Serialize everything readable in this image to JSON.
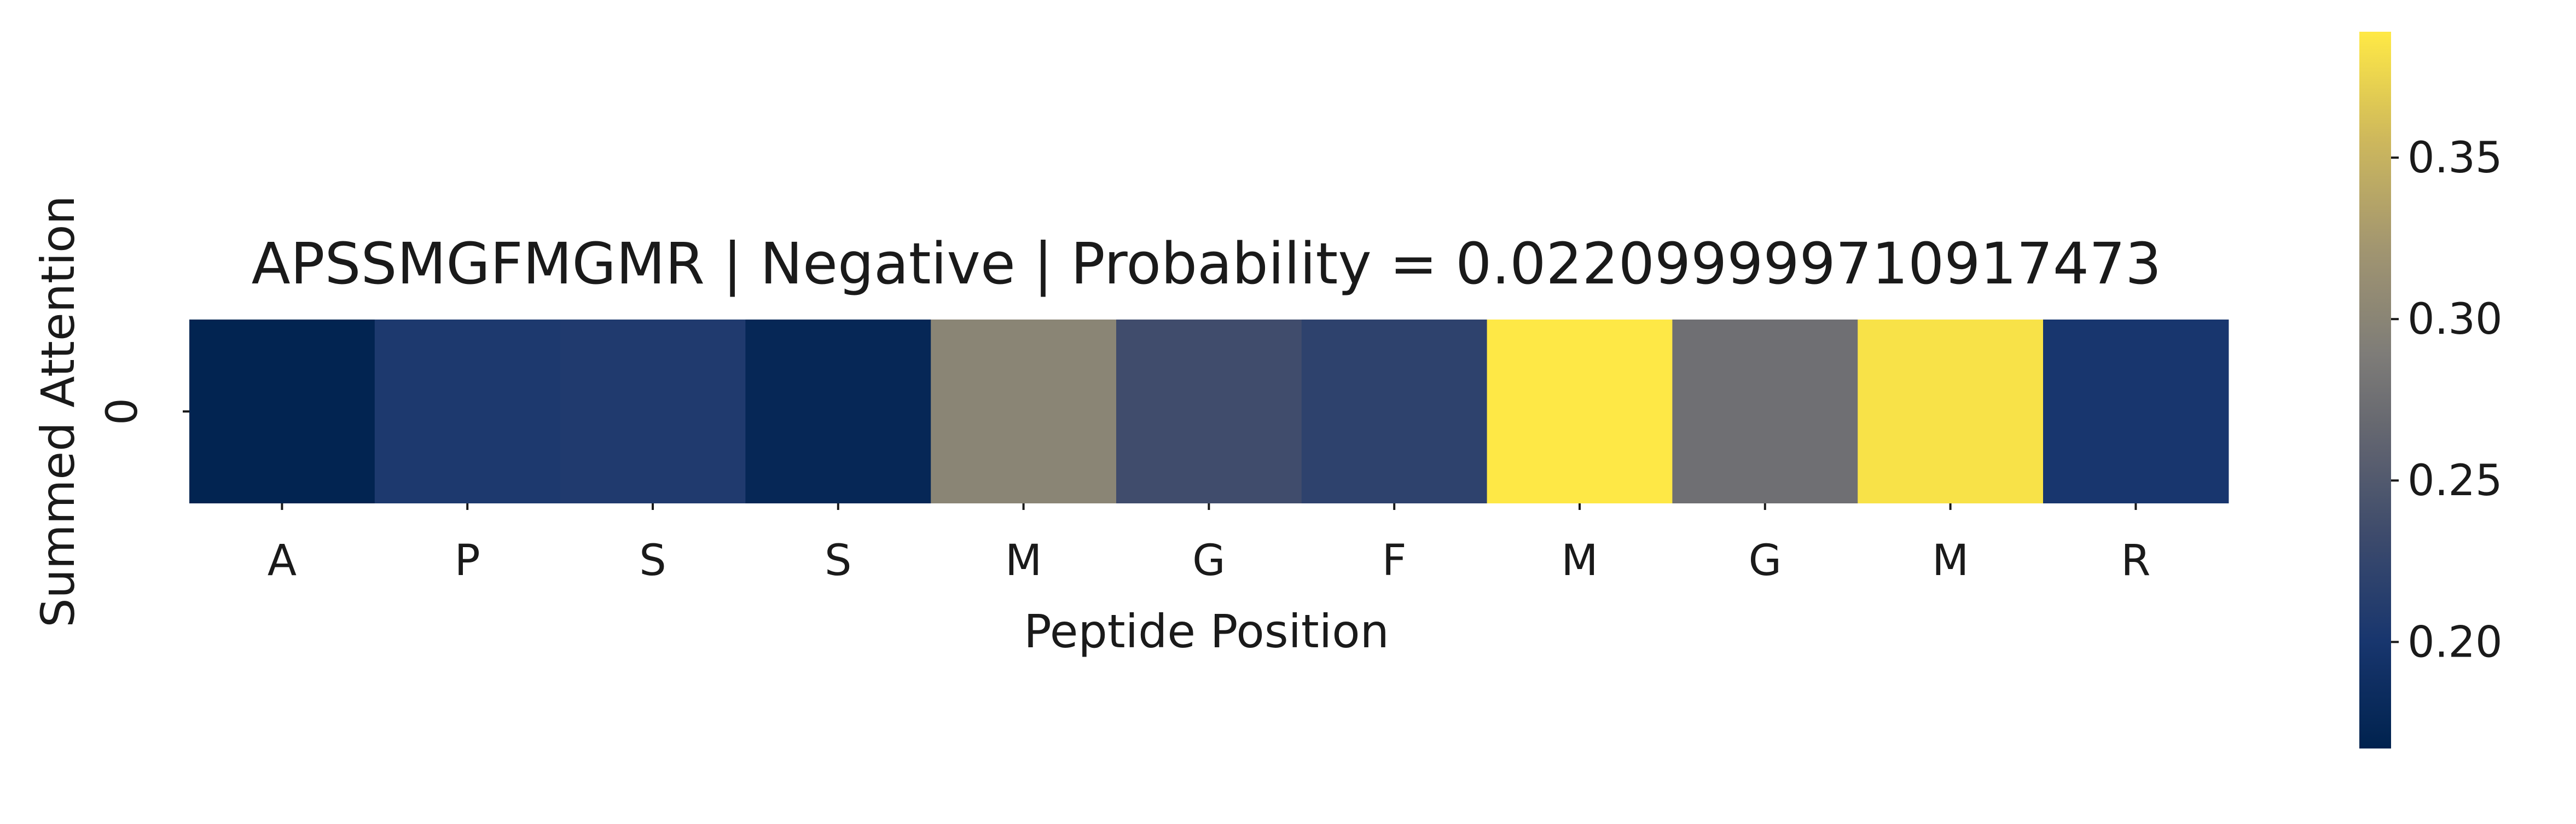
{
  "chart_data": {
    "type": "heatmap",
    "title": "APSSMGFMGMR | Negative | Probability = 0.022099999710917473",
    "xlabel": "Peptide Position",
    "ylabel": "Summed Attention",
    "x_categories": [
      "A",
      "P",
      "S",
      "S",
      "M",
      "G",
      "F",
      "M",
      "G",
      "M",
      "R"
    ],
    "y_categories": [
      "0"
    ],
    "values": [
      [
        0.17,
        0.205,
        0.207,
        0.175,
        0.3,
        0.235,
        0.22,
        0.388,
        0.275,
        0.384,
        0.2
      ]
    ],
    "colorscale": "cividis",
    "colorbar": {
      "range": [
        0.167,
        0.389
      ],
      "ticks": [
        0.2,
        0.25,
        0.3,
        0.35
      ],
      "tick_labels": [
        "0.20",
        "0.25",
        "0.30",
        "0.35"
      ]
    }
  }
}
